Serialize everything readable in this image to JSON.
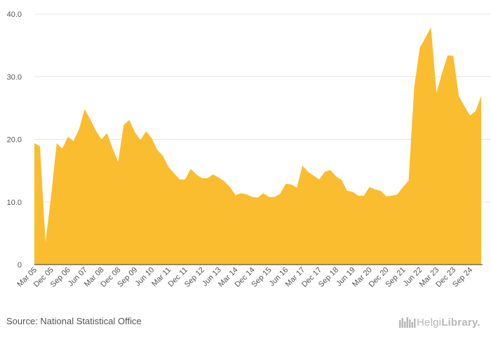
{
  "chart_data": {
    "type": "area",
    "title": "",
    "xlabel": "",
    "ylabel": "",
    "ylim": [
      0,
      40
    ],
    "yticks": [
      "0",
      "10.0",
      "20.0",
      "30.0",
      "40.0"
    ],
    "grid": true,
    "fill_color": "#FABD2F",
    "grid_color": "#e6e6e6",
    "x_labels": [
      "Mar 05",
      "Dec 05",
      "Sep 06",
      "Jun 07",
      "Mar 08",
      "Dec 08",
      "Sep 09",
      "Jun 10",
      "Mar 11",
      "Dec 11",
      "Sep 12",
      "Jun 13",
      "Mar 14",
      "Dec 14",
      "Sep 15",
      "Jun 16",
      "Mar 17",
      "Dec 17",
      "Sep 18",
      "Jun 19",
      "Mar 20",
      "Dec 20",
      "Sep 21",
      "Jun 22",
      "Mar 23",
      "Dec 23",
      "Sep 24"
    ],
    "values": [
      19.4,
      18.9,
      3.6,
      11.0,
      19.4,
      18.5,
      20.4,
      19.7,
      21.6,
      24.8,
      23.2,
      21.4,
      20.0,
      21.0,
      18.6,
      16.4,
      22.3,
      23.1,
      21.1,
      19.9,
      21.3,
      20.2,
      18.3,
      17.4,
      15.6,
      14.6,
      13.6,
      13.6,
      15.3,
      14.4,
      13.8,
      13.8,
      14.4,
      13.9,
      13.3,
      12.4,
      11.1,
      11.4,
      11.2,
      10.8,
      10.7,
      11.4,
      10.8,
      10.8,
      11.3,
      12.9,
      12.8,
      12.3,
      15.8,
      14.8,
      14.2,
      13.6,
      14.8,
      15.1,
      14.1,
      13.5,
      11.8,
      11.6,
      11.0,
      11.0,
      12.4,
      12.0,
      11.8,
      10.9,
      11.0,
      11.2,
      12.4,
      13.4,
      28.2,
      34.6,
      36.2,
      37.9,
      27.4,
      30.6,
      33.4,
      33.3,
      26.9,
      25.3,
      23.8,
      24.5,
      26.9
    ]
  },
  "footer": {
    "source": "Source: National Statistical Office",
    "logo_text": "HelgiLibrary.",
    "logo_text_light": "Helgi",
    "logo_text_bold": "Library.",
    "logo_icon": "bookshelf-icon"
  }
}
